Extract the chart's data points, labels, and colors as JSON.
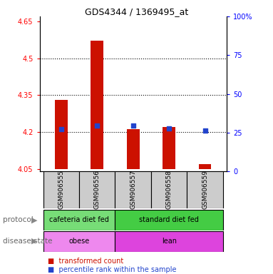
{
  "title": "GDS4344 / 1369495_at",
  "samples": [
    "GSM906555",
    "GSM906556",
    "GSM906557",
    "GSM906558",
    "GSM906559"
  ],
  "bar_values": [
    4.33,
    4.57,
    4.21,
    4.22,
    4.07
  ],
  "bar_base": 4.05,
  "percentile_values": [
    4.21,
    4.225,
    4.225,
    4.215,
    4.205
  ],
  "ylim_left": [
    4.04,
    4.67
  ],
  "ylim_right": [
    0,
    100
  ],
  "yticks_left": [
    4.05,
    4.2,
    4.35,
    4.5,
    4.65
  ],
  "yticks_right": [
    0,
    25,
    50,
    75,
    100
  ],
  "ytick_labels_left": [
    "4.05",
    "4.2",
    "4.35",
    "4.5",
    "4.65"
  ],
  "ytick_labels_right": [
    "0",
    "25",
    "50",
    "75",
    "100%"
  ],
  "dotted_lines": [
    4.2,
    4.35,
    4.5
  ],
  "bar_color": "#cc1100",
  "percentile_color": "#2244cc",
  "protocol_groups": [
    {
      "label": "cafeteria diet fed",
      "start": 0,
      "end": 1,
      "color": "#77dd77"
    },
    {
      "label": "standard diet fed",
      "start": 2,
      "end": 4,
      "color": "#44cc44"
    }
  ],
  "disease_groups": [
    {
      "label": "obese",
      "start": 0,
      "end": 1,
      "color": "#ee88ee"
    },
    {
      "label": "lean",
      "start": 2,
      "end": 4,
      "color": "#dd44dd"
    }
  ],
  "protocol_label": "protocol",
  "disease_label": "disease state",
  "legend_red_label": "transformed count",
  "legend_blue_label": "percentile rank within the sample",
  "sample_box_color": "#cccccc",
  "arrow_color": "#888888"
}
